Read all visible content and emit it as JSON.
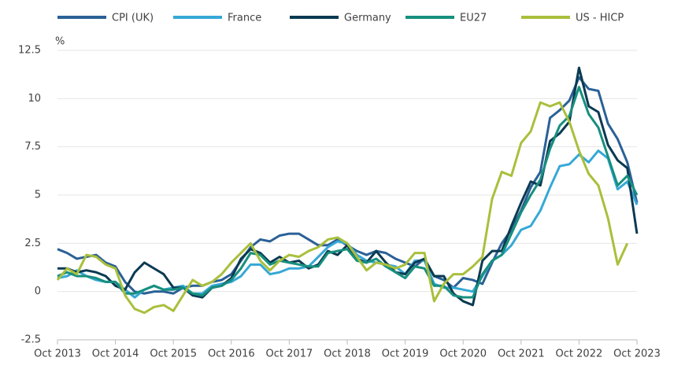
{
  "chart_data": {
    "type": "line",
    "y_label": "%",
    "categories": [
      "Oct 2013",
      null,
      null,
      null,
      null,
      null,
      "Oct 2014",
      null,
      null,
      null,
      null,
      null,
      "Oct 2015",
      null,
      null,
      null,
      null,
      null,
      "Oct 2016",
      null,
      null,
      null,
      null,
      null,
      "Oct 2017",
      null,
      null,
      null,
      null,
      null,
      "Oct 2018",
      null,
      null,
      null,
      null,
      null,
      "Oct 2019",
      null,
      null,
      null,
      null,
      null,
      "Oct 2020",
      null,
      null,
      null,
      null,
      null,
      "Oct 2021",
      null,
      null,
      null,
      null,
      null,
      "Oct 2022",
      null,
      null,
      null,
      null,
      null,
      "Oct 2023"
    ],
    "series": [
      {
        "name": "CPI (UK)",
        "color": "#2a6196",
        "values": [
          2.2,
          2.0,
          1.7,
          1.8,
          1.9,
          1.5,
          1.3,
          0.5,
          0.0,
          -0.1,
          0.0,
          0.0,
          -0.1,
          0.2,
          0.3,
          0.3,
          0.5,
          0.6,
          0.9,
          1.6,
          2.3,
          2.7,
          2.6,
          2.9,
          3.0,
          3.0,
          2.7,
          2.4,
          2.4,
          2.7,
          2.4,
          2.1,
          1.9,
          2.1,
          2.0,
          1.7,
          1.5,
          1.3,
          1.7,
          0.8,
          0.6,
          0.2,
          0.7,
          0.6,
          0.4,
          1.5,
          2.5,
          3.2,
          4.2,
          5.4,
          6.2,
          9.0,
          9.4,
          9.9,
          11.1,
          10.5,
          10.4,
          8.7,
          7.9,
          6.7,
          4.6
        ]
      },
      {
        "name": "France",
        "color": "#36a8d6",
        "values": [
          0.7,
          0.8,
          1.1,
          0.8,
          0.6,
          0.5,
          0.5,
          0.1,
          -0.3,
          0.1,
          0.3,
          0.1,
          0.2,
          0.3,
          -0.1,
          -0.1,
          0.3,
          0.4,
          0.5,
          0.8,
          1.4,
          1.4,
          0.9,
          1.0,
          1.2,
          1.2,
          1.3,
          1.8,
          2.3,
          2.6,
          2.5,
          1.9,
          1.6,
          1.5,
          1.4,
          1.3,
          0.9,
          1.6,
          1.6,
          0.4,
          0.2,
          0.2,
          0.1,
          0.0,
          0.8,
          1.6,
          1.9,
          2.4,
          3.2,
          3.4,
          4.2,
          5.4,
          6.5,
          6.6,
          7.1,
          6.7,
          7.3,
          6.9,
          5.3,
          5.7,
          4.5
        ]
      },
      {
        "name": "Germany",
        "color": "#0b3a52",
        "values": [
          1.2,
          1.2,
          1.0,
          1.1,
          1.0,
          0.8,
          0.3,
          0.1,
          1.0,
          1.5,
          1.2,
          0.9,
          0.2,
          0.2,
          -0.2,
          -0.3,
          0.2,
          0.3,
          0.7,
          1.7,
          2.2,
          2.0,
          1.5,
          1.8,
          1.5,
          1.6,
          1.2,
          1.4,
          2.1,
          1.9,
          2.4,
          1.7,
          1.5,
          2.1,
          1.5,
          1.0,
          0.9,
          1.5,
          1.7,
          0.8,
          0.8,
          -0.1,
          -0.5,
          -0.7,
          1.6,
          2.1,
          2.1,
          3.4,
          4.6,
          5.7,
          5.5,
          7.8,
          8.2,
          8.8,
          11.6,
          9.6,
          9.3,
          7.6,
          6.8,
          6.4,
          3.0
        ]
      },
      {
        "name": "EU27",
        "color": "#178f7e",
        "values": [
          0.8,
          1.0,
          0.8,
          0.8,
          0.7,
          0.5,
          0.5,
          -0.1,
          -0.1,
          0.1,
          0.3,
          0.1,
          0.1,
          0.2,
          -0.1,
          -0.2,
          0.2,
          0.3,
          0.6,
          1.2,
          2.0,
          1.9,
          1.4,
          1.6,
          1.5,
          1.4,
          1.3,
          1.3,
          2.0,
          2.1,
          2.2,
          1.6,
          1.5,
          1.7,
          1.3,
          1.0,
          0.7,
          1.3,
          1.2,
          0.3,
          0.3,
          -0.2,
          -0.3,
          -0.3,
          0.9,
          1.6,
          1.9,
          3.0,
          4.1,
          5.0,
          5.8,
          7.4,
          8.6,
          9.1,
          10.6,
          9.2,
          8.5,
          7.0,
          5.5,
          6.0,
          5.0
        ]
      },
      {
        "name": "US - HICP",
        "color": "#a9bf3c",
        "values": [
          0.6,
          1.2,
          0.9,
          1.9,
          1.8,
          1.4,
          1.2,
          -0.2,
          -0.9,
          -1.1,
          -0.8,
          -0.7,
          -1.0,
          -0.2,
          0.6,
          0.3,
          0.5,
          0.9,
          1.5,
          2.0,
          2.5,
          1.6,
          1.1,
          1.6,
          1.9,
          1.8,
          2.1,
          2.3,
          2.7,
          2.8,
          2.5,
          1.8,
          1.1,
          1.5,
          1.4,
          1.2,
          1.4,
          2.0,
          2.0,
          -0.5,
          0.4,
          0.9,
          0.9,
          1.3,
          1.8,
          4.8,
          6.2,
          6.0,
          7.7,
          8.3,
          9.8,
          9.6,
          9.8,
          8.8,
          7.3,
          6.1,
          5.5,
          3.8,
          1.4,
          2.5,
          null
        ]
      }
    ],
    "ylim": [
      -2.5,
      12.5
    ],
    "yticks": [
      -2.5,
      0,
      2.5,
      5,
      7.5,
      10,
      12.5
    ],
    "grid": true,
    "legend": "top"
  }
}
